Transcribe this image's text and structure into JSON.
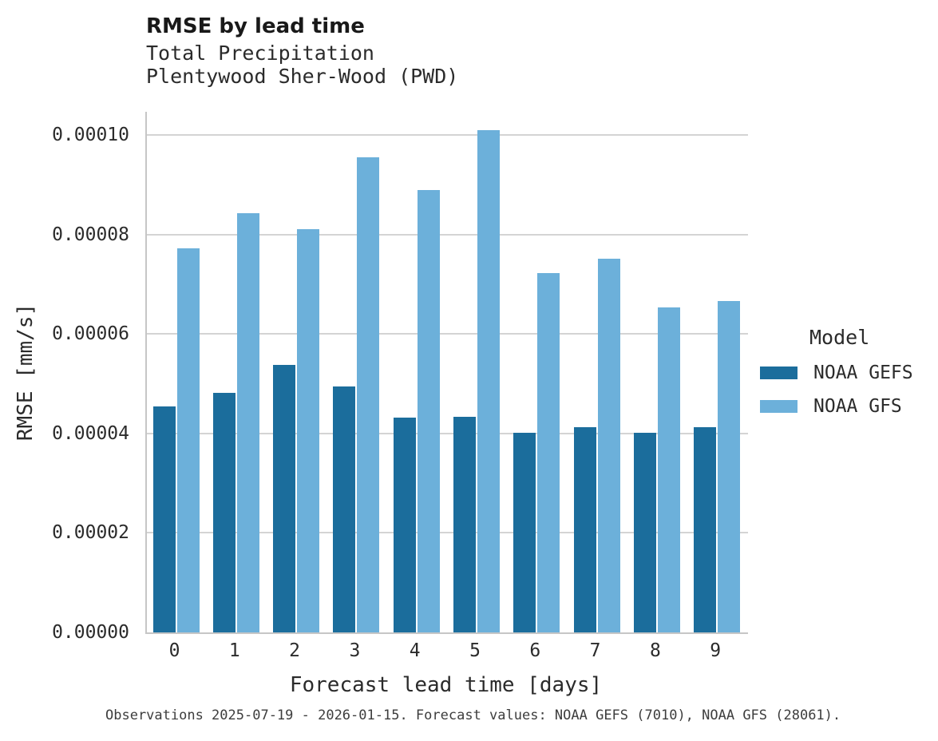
{
  "header": {
    "title": "RMSE by lead time",
    "subtitle_line1": "Total Precipitation",
    "subtitle_line2": "Plentywood Sher-Wood (PWD)"
  },
  "chart_data": {
    "type": "bar",
    "title": "RMSE by lead time",
    "subtitle": "Total Precipitation — Plentywood Sher-Wood (PWD)",
    "categories": [
      "0",
      "1",
      "2",
      "3",
      "4",
      "5",
      "6",
      "7",
      "8",
      "9"
    ],
    "series": [
      {
        "name": "NOAA GEFS",
        "color": "#1b6d9c",
        "values": [
          4.55e-05,
          4.81e-05,
          5.37e-05,
          4.95e-05,
          4.31e-05,
          4.33e-05,
          4.02e-05,
          4.13e-05,
          4.02e-05,
          4.12e-05
        ]
      },
      {
        "name": "NOAA GFS",
        "color": "#6cb0da",
        "values": [
          7.72e-05,
          8.43e-05,
          8.11e-05,
          9.55e-05,
          8.89e-05,
          0.0001009,
          7.23e-05,
          7.51e-05,
          6.53e-05,
          6.66e-05
        ]
      }
    ],
    "xlabel": "Forecast lead time [days]",
    "ylabel": "RMSE [mm/s]",
    "ylim": [
      0,
      0.0001047
    ],
    "yticks": [
      {
        "value": 0.0,
        "label": "0.00000"
      },
      {
        "value": 2e-05,
        "label": "0.00002"
      },
      {
        "value": 4e-05,
        "label": "0.00004"
      },
      {
        "value": 6e-05,
        "label": "0.00006"
      },
      {
        "value": 8e-05,
        "label": "0.00008"
      },
      {
        "value": 0.0001,
        "label": "0.00010"
      }
    ],
    "grid": true,
    "legend_position": "right"
  },
  "legend": {
    "title": "Model",
    "entries": [
      {
        "label": "NOAA GEFS",
        "color": "#1b6d9c"
      },
      {
        "label": "NOAA GFS",
        "color": "#6cb0da"
      }
    ]
  },
  "footer": {
    "text": "Observations 2025-07-19 - 2026-01-15. Forecast values: NOAA GEFS (7010), NOAA GFS (28061)."
  },
  "colors": {
    "gridline": "#d4d4d4",
    "axis_spine": "#c6c6c6",
    "background": "#ffffff"
  }
}
